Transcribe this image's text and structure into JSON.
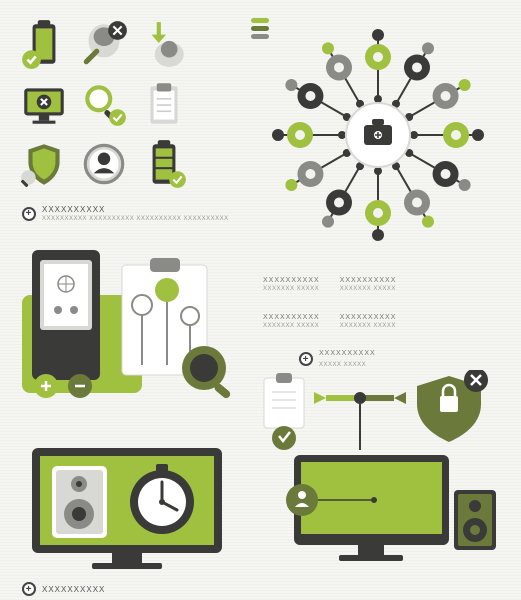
{
  "colors": {
    "green": "#a0c040",
    "green_bright": "#b5d848",
    "olive": "#6b7a3a",
    "dark": "#3a3a38",
    "gray": "#8a8a86",
    "light_gray": "#d8d8d4",
    "white": "#ffffff",
    "bg": "#f2f2ee"
  },
  "icon_grid": [
    {
      "name": "battery-check-icon"
    },
    {
      "name": "head-close-icon"
    },
    {
      "name": "download-head-icon"
    },
    {
      "name": "monitor-close-icon"
    },
    {
      "name": "search-check-icon"
    },
    {
      "name": "clipboard-icon"
    },
    {
      "name": "shield-search-icon"
    },
    {
      "name": "person-magnify-icon"
    },
    {
      "name": "battery-full-icon"
    }
  ],
  "radial": {
    "center_icon": "medkit-icon",
    "spokes": 12,
    "node_colors": [
      "#a0c040",
      "#3a3a38",
      "#8a8a86",
      "#a0c040",
      "#3a3a38",
      "#8a8a86",
      "#a0c040",
      "#3a3a38",
      "#8a8a86",
      "#a0c040",
      "#3a3a38",
      "#8a8a86"
    ],
    "legend_colors": [
      "#a0c040",
      "#6b7a3a",
      "#8a8a86"
    ]
  },
  "text_blocks": {
    "row1": "XXXXXXXXXX",
    "row1_sub": "XXXXXXXXXX XXXXXXXXXX XXXXXXXXXX XXXXXXXXXX",
    "row2_a": "XXXXXXXXXX",
    "row2_b": "XXXXXXXXXX",
    "row2_c": "XXXXXXXXXX",
    "row3": "XXXXXXXXXX",
    "bottom": "XXXXXXXXXX"
  }
}
